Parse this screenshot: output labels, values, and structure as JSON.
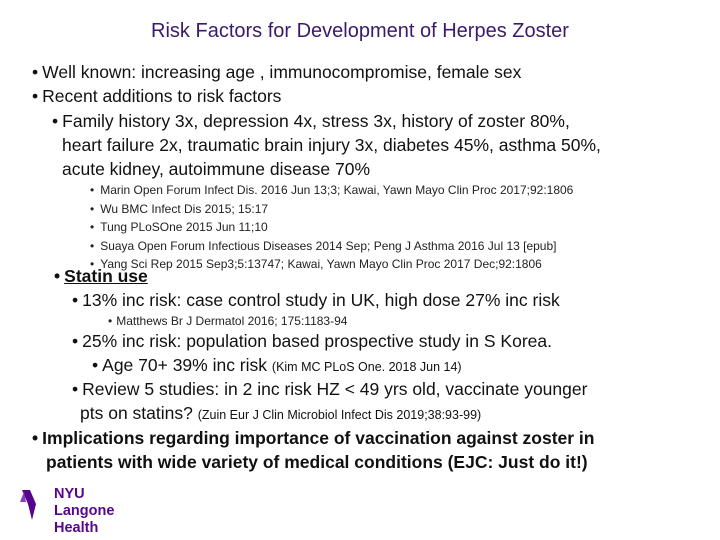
{
  "title": "Risk Factors for Development of Herpes Zoster",
  "bullets": {
    "b1": "Well known: increasing age , immunocompromise, female sex",
    "b2": "Recent additions to risk factors",
    "b3_l1": "Family history 3x, depression 4x, stress 3x, history of zoster 80%,",
    "b3_l2": "heart failure 2x, traumatic brain injury 3x, diabetes 45%, asthma 50%,",
    "b3_l3": "acute kidney, autoimmune disease 70%",
    "refs": [
      "Marin Open Forum Infect Dis. 2016 Jun 13;3; Kawai, Yawn Mayo Clin Proc 2017;92:1806",
      "Wu BMC Infect Dis 2015; 15:17",
      "Tung PLoSOne 2015 Jun 11;10",
      "Suaya Open Forum Infectious Diseases 2014 Sep; Peng J Asthma 2016 Jul 13 [epub]",
      "Yang Sci Rep 2015 Sep3;5:13747; Kawai, Yawn Mayo Clin Proc 2017 Dec;92:1806"
    ],
    "statin": "Statin use",
    "statin_uk": "13% inc risk: case control study in UK, high dose 27% inc risk",
    "statin_uk_ref": "Matthews Br J Dermatol 2016; 175:1183-94",
    "statin_korea": "25% inc risk: population based prospective study in S Korea.",
    "age70": "Age 70+ 39% inc risk",
    "age70_ref": "(Kim MC PLoS One. 2018 Jun 14)",
    "review_l1": "Review 5 studies: in 2 inc risk HZ < 49 yrs old, vaccinate younger",
    "review_l2": "pts on statins?",
    "review_ref": "(Zuin Eur J Clin Microbiol Infect Dis 2019;38:93-99)",
    "impl_l1": "Implications regarding importance of vaccination against zoster in",
    "impl_l2": "patients with wide variety of medical conditions (EJC: Just do it!)"
  },
  "logo": {
    "line1": "NYU Langone",
    "line2": "Health"
  }
}
